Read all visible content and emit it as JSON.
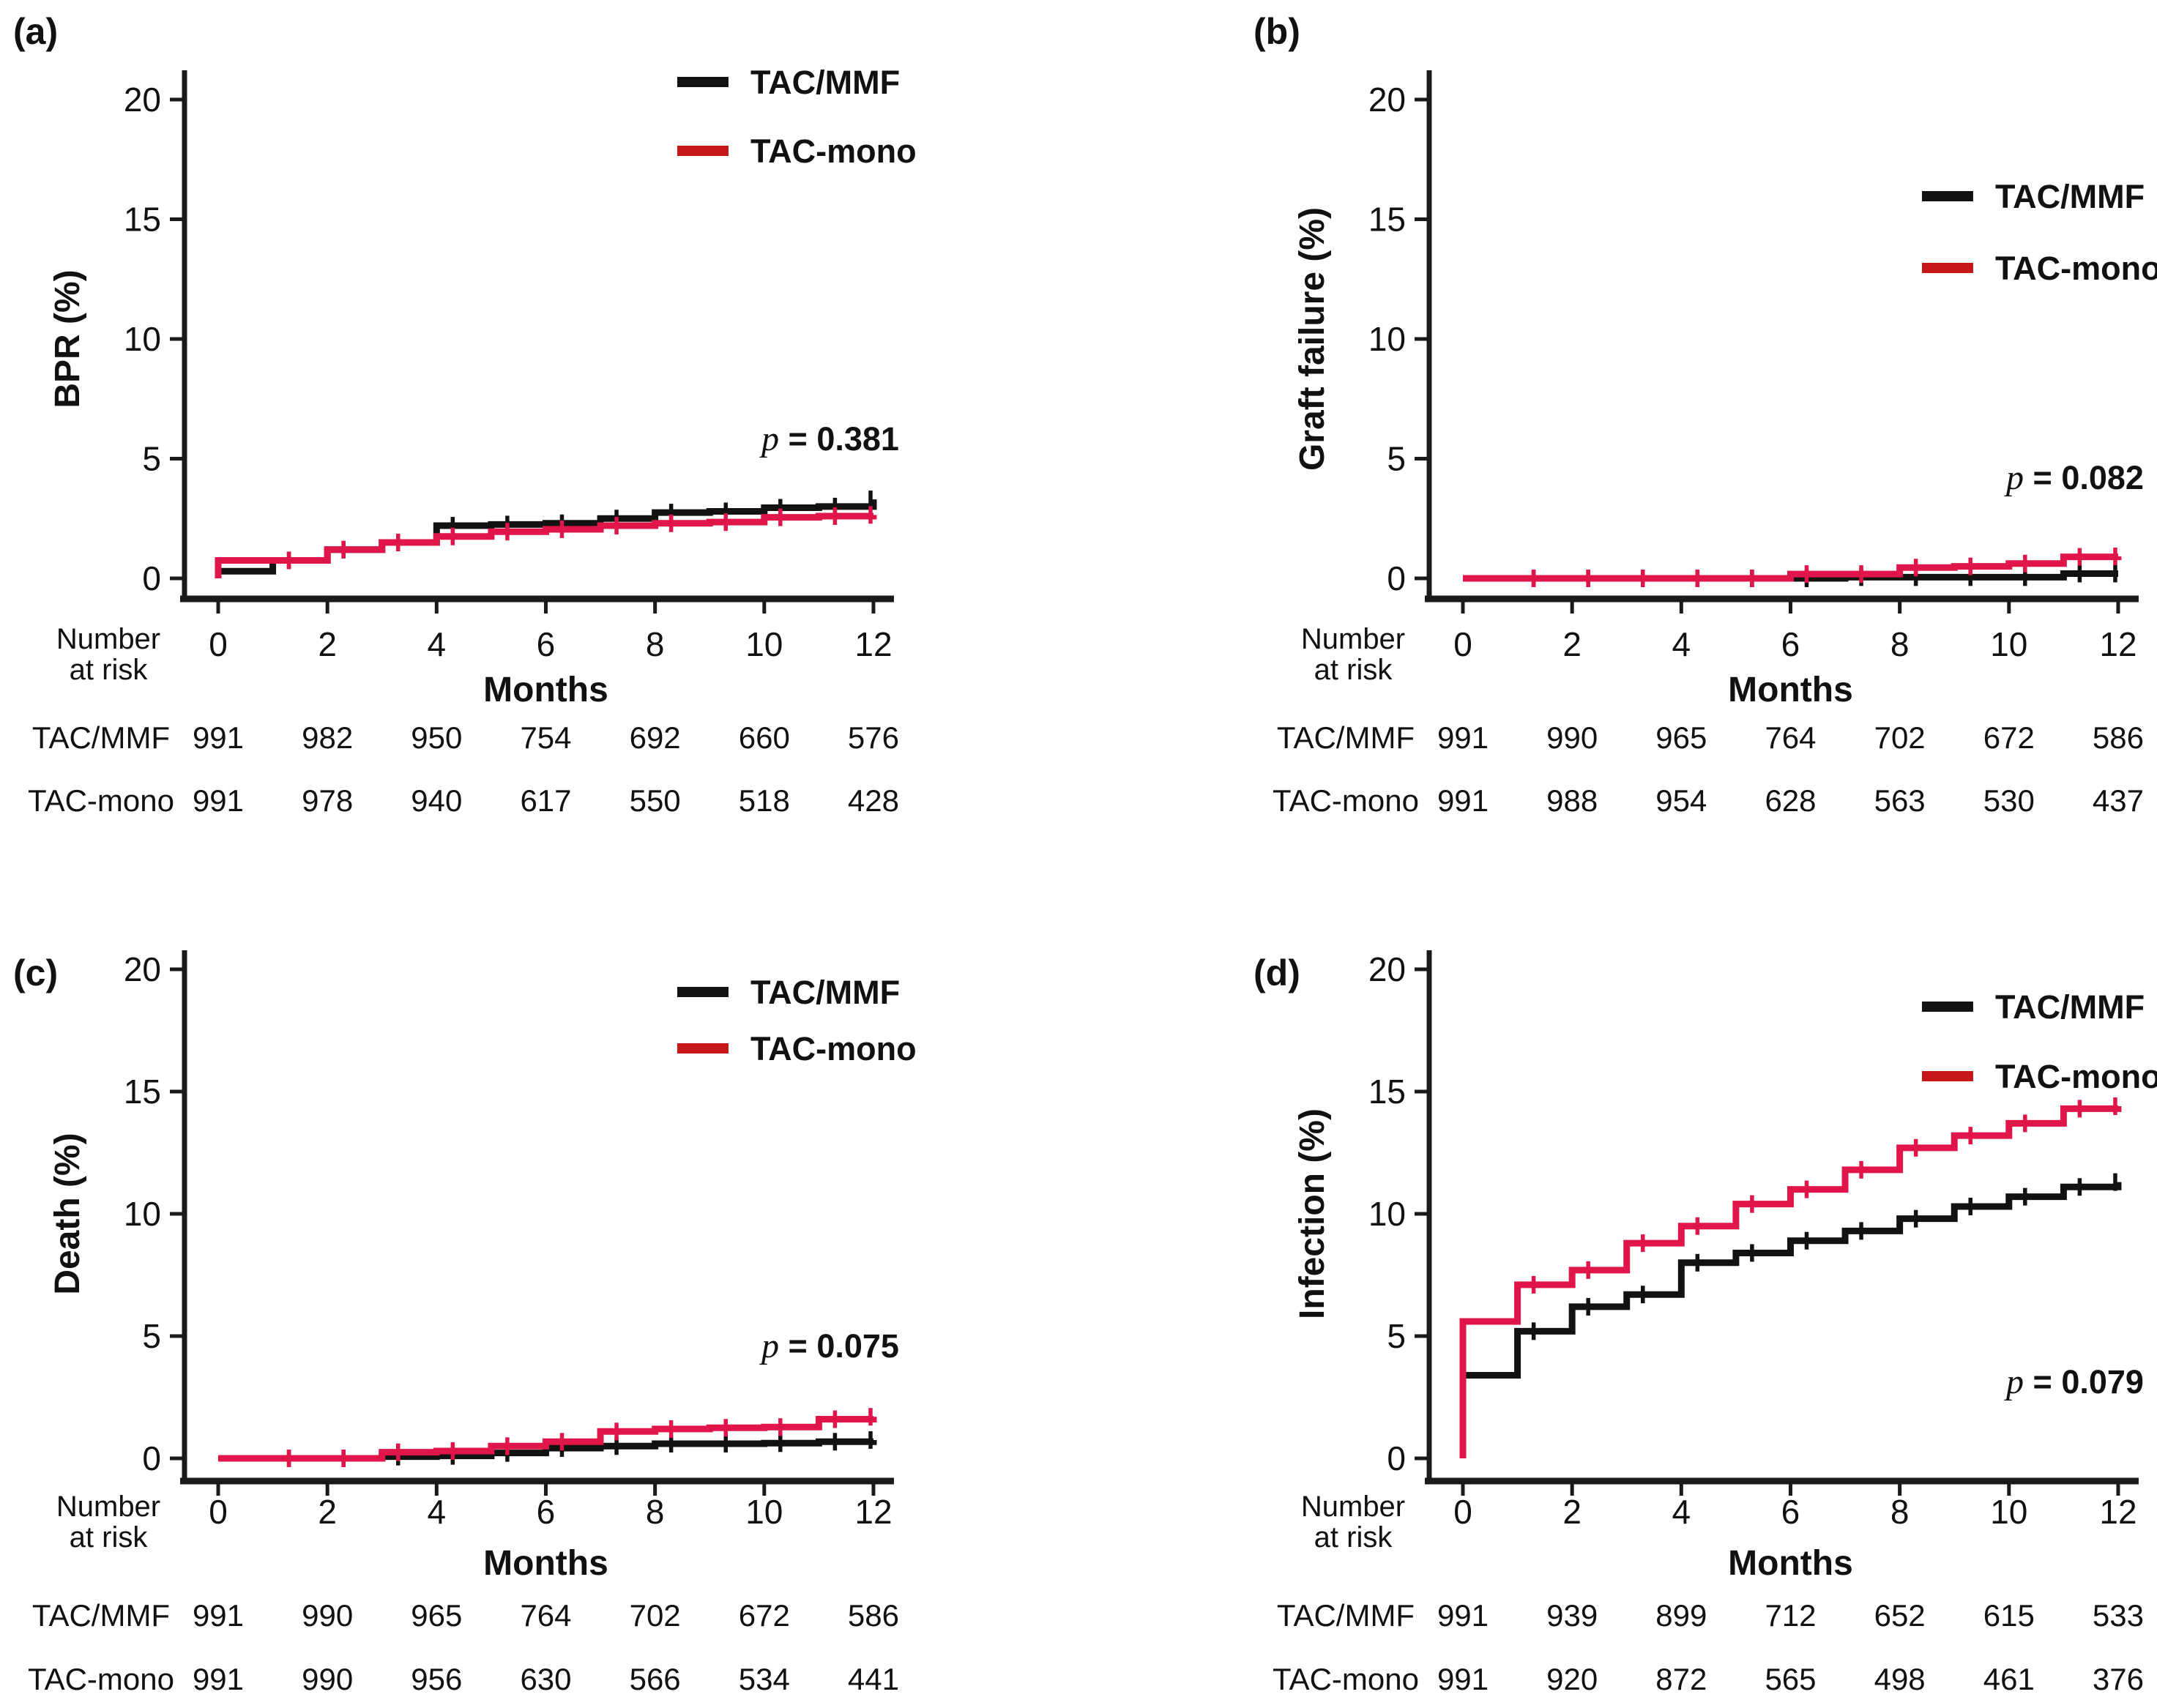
{
  "colors": {
    "black_series": "#121212",
    "red_series": "#e0164a",
    "legend_red": "#c51718",
    "axis": "#1a1a1a",
    "text": "#111111",
    "background": "#ffffff"
  },
  "legend": {
    "entries": [
      {
        "label": "TAC/MMF",
        "color_key": "black_series"
      },
      {
        "label": "TAC-mono",
        "color_key": "legend_red"
      }
    ]
  },
  "number_at_risk_label": {
    "line1": "Number",
    "line2": "at risk"
  },
  "chart_data": [
    {
      "id": "a",
      "panel_label": "(a)",
      "type": "line",
      "step": true,
      "ylabel": "BPR (%)",
      "xlabel": "Months",
      "ylim": [
        0,
        21
      ],
      "yticks": [
        0,
        5,
        10,
        15,
        20
      ],
      "xticks": [
        0,
        2,
        4,
        6,
        8,
        10,
        12
      ],
      "x_months": [
        0,
        1,
        2,
        3,
        4,
        5,
        6,
        7,
        8,
        9,
        10,
        11,
        12
      ],
      "p_symbol": "p",
      "p_value": "= 0.381",
      "series": [
        {
          "name": "TAC/MMF",
          "color_key": "black_series",
          "starts_at_zero": false,
          "values": [
            0.3,
            0.75,
            1.2,
            1.5,
            2.2,
            2.25,
            2.3,
            2.5,
            2.75,
            2.8,
            2.95,
            3.0,
            3.3
          ]
        },
        {
          "name": "TAC-mono",
          "color_key": "red_series",
          "starts_at_zero": true,
          "values": [
            0.75,
            0.75,
            1.2,
            1.5,
            1.75,
            1.95,
            2.05,
            2.2,
            2.3,
            2.35,
            2.55,
            2.6,
            2.65
          ]
        }
      ],
      "number_at_risk": {
        "columns": [
          0,
          2,
          4,
          6,
          8,
          10,
          12
        ],
        "rows": [
          {
            "name": "TAC/MMF",
            "values": [
              991,
              982,
              950,
              754,
              692,
              660,
              576
            ]
          },
          {
            "name": "TAC-mono",
            "values": [
              991,
              978,
              940,
              617,
              550,
              518,
              428
            ]
          }
        ]
      }
    },
    {
      "id": "b",
      "panel_label": "(b)",
      "type": "line",
      "step": true,
      "ylabel": "Graft failure (%)",
      "xlabel": "Months",
      "ylim": [
        0,
        21
      ],
      "yticks": [
        0,
        5,
        10,
        15,
        20
      ],
      "xticks": [
        0,
        2,
        4,
        6,
        8,
        10,
        12
      ],
      "x_months": [
        0,
        1,
        2,
        3,
        4,
        5,
        6,
        7,
        8,
        9,
        10,
        11,
        12
      ],
      "p_symbol": "p",
      "p_value": "= 0.082",
      "series": [
        {
          "name": "TAC/MMF",
          "color_key": "black_series",
          "starts_at_zero": false,
          "values": [
            0,
            0,
            0,
            0,
            0,
            0,
            0,
            0.05,
            0.05,
            0.05,
            0.05,
            0.2,
            0.2
          ]
        },
        {
          "name": "TAC-mono",
          "color_key": "red_series",
          "starts_at_zero": false,
          "values": [
            0,
            0,
            0,
            0,
            0,
            0,
            0.18,
            0.18,
            0.45,
            0.5,
            0.62,
            0.9,
            0.92
          ]
        }
      ],
      "number_at_risk": {
        "columns": [
          0,
          2,
          4,
          6,
          8,
          10,
          12
        ],
        "rows": [
          {
            "name": "TAC/MMF",
            "values": [
              991,
              990,
              965,
              764,
              702,
              672,
              586
            ]
          },
          {
            "name": "TAC-mono",
            "values": [
              991,
              988,
              954,
              628,
              563,
              530,
              437
            ]
          }
        ]
      }
    },
    {
      "id": "c",
      "panel_label": "(c)",
      "type": "line",
      "step": true,
      "ylabel": "Death (%)",
      "xlabel": "Months",
      "ylim": [
        0,
        21
      ],
      "yticks": [
        0,
        5,
        10,
        15,
        20
      ],
      "xticks": [
        0,
        2,
        4,
        6,
        8,
        10,
        12
      ],
      "x_months": [
        0,
        1,
        2,
        3,
        4,
        5,
        6,
        7,
        8,
        9,
        10,
        11,
        12
      ],
      "p_symbol": "p",
      "p_value": "= 0.075",
      "series": [
        {
          "name": "TAC/MMF",
          "color_key": "black_series",
          "starts_at_zero": false,
          "values": [
            0,
            0,
            0,
            0.07,
            0.1,
            0.22,
            0.42,
            0.5,
            0.6,
            0.6,
            0.62,
            0.68,
            0.75
          ]
        },
        {
          "name": "TAC-mono",
          "color_key": "red_series",
          "starts_at_zero": false,
          "values": [
            0,
            0,
            0,
            0.25,
            0.3,
            0.5,
            0.68,
            1.1,
            1.2,
            1.25,
            1.28,
            1.6,
            1.7
          ]
        }
      ],
      "number_at_risk": {
        "columns": [
          0,
          2,
          4,
          6,
          8,
          10,
          12
        ],
        "rows": [
          {
            "name": "TAC/MMF",
            "values": [
              991,
              990,
              965,
              764,
              702,
              672,
              586
            ]
          },
          {
            "name": "TAC-mono",
            "values": [
              991,
              990,
              956,
              630,
              566,
              534,
              441
            ]
          }
        ]
      }
    },
    {
      "id": "d",
      "panel_label": "(d)",
      "type": "line",
      "step": true,
      "ylabel": "Infection (%)",
      "xlabel": "Months",
      "ylim": [
        0,
        21
      ],
      "yticks": [
        0,
        5,
        10,
        15,
        20
      ],
      "xticks": [
        0,
        2,
        4,
        6,
        8,
        10,
        12
      ],
      "x_months": [
        0,
        1,
        2,
        3,
        4,
        5,
        6,
        7,
        8,
        9,
        10,
        11,
        12
      ],
      "p_symbol": "p",
      "p_value": "= 0.079",
      "series": [
        {
          "name": "TAC/MMF",
          "color_key": "black_series",
          "starts_at_zero": true,
          "values": [
            3.4,
            5.2,
            6.2,
            6.7,
            8.0,
            8.4,
            8.9,
            9.3,
            9.8,
            10.3,
            10.7,
            11.1,
            11.3
          ]
        },
        {
          "name": "TAC-mono",
          "color_key": "red_series",
          "starts_at_zero": true,
          "values": [
            5.6,
            7.1,
            7.7,
            8.8,
            9.5,
            10.4,
            11.0,
            11.8,
            12.7,
            13.2,
            13.7,
            14.3,
            14.4
          ]
        }
      ],
      "number_at_risk": {
        "columns": [
          0,
          2,
          4,
          6,
          8,
          10,
          12
        ],
        "rows": [
          {
            "name": "TAC/MMF",
            "values": [
              991,
              939,
              899,
              712,
              652,
              615,
              533
            ]
          },
          {
            "name": "TAC-mono",
            "values": [
              991,
              920,
              872,
              565,
              498,
              461,
              376
            ]
          }
        ]
      }
    }
  ]
}
